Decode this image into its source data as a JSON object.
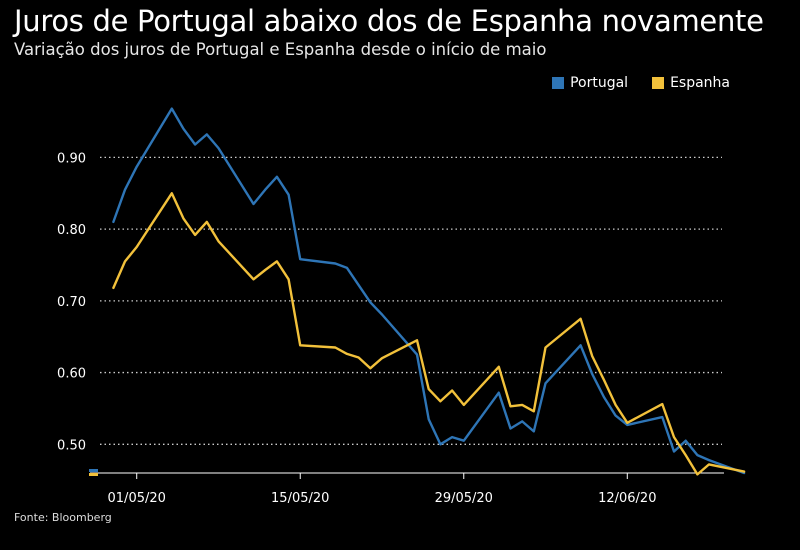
{
  "header": {
    "title": "Juros de Portugal abaixo dos de Espanha novamente",
    "subtitle": "Variação dos juros de Portugal e Espanha desde o início de maio"
  },
  "footer": {
    "source": "Fonte: Bloomberg"
  },
  "colors": {
    "portugal": "#2e75b6",
    "espanha": "#f2c13b",
    "grid": "#cccccc",
    "background": "#000000"
  },
  "chart_data": {
    "type": "line",
    "title": "Juros de Portugal abaixo dos de Espanha novamente",
    "subtitle": "Variação dos juros de Portugal e Espanha desde o início de maio",
    "xlabel": "",
    "ylabel": "",
    "ylim": [
      0.46,
      0.98
    ],
    "yticks": [
      0.5,
      0.6,
      0.7,
      0.8,
      0.9
    ],
    "ytick_labels": [
      "0.50",
      "0.60",
      "0.70",
      "0.80",
      "0.90"
    ],
    "xticks": [
      "01/05/20",
      "15/05/20",
      "29/05/20",
      "12/06/20"
    ],
    "grid": "horizontal-dotted",
    "legend_position": "top-right",
    "x": [
      "2020-04-29",
      "2020-04-30",
      "2020-05-01",
      "2020-05-04",
      "2020-05-05",
      "2020-05-06",
      "2020-05-07",
      "2020-05-08",
      "2020-05-11",
      "2020-05-12",
      "2020-05-13",
      "2020-05-14",
      "2020-05-15",
      "2020-05-18",
      "2020-05-19",
      "2020-05-20",
      "2020-05-21",
      "2020-05-22",
      "2020-05-25",
      "2020-05-26",
      "2020-05-27",
      "2020-05-28",
      "2020-05-29",
      "2020-06-01",
      "2020-06-02",
      "2020-06-03",
      "2020-06-04",
      "2020-06-05",
      "2020-06-08",
      "2020-06-09",
      "2020-06-10",
      "2020-06-11",
      "2020-06-12",
      "2020-06-15",
      "2020-06-16",
      "2020-06-17",
      "2020-06-18",
      "2020-06-19",
      "2020-06-22"
    ],
    "series": [
      {
        "name": "Portugal",
        "color": "#2e75b6",
        "values": [
          0.81,
          0.855,
          0.887,
          0.968,
          0.94,
          0.918,
          0.932,
          0.913,
          0.835,
          0.855,
          0.873,
          0.848,
          0.758,
          0.752,
          0.746,
          0.722,
          0.698,
          0.681,
          0.625,
          0.535,
          0.5,
          0.51,
          0.505,
          0.572,
          0.522,
          0.532,
          0.518,
          0.585,
          0.638,
          0.598,
          0.566,
          0.54,
          0.527,
          0.538,
          0.49,
          0.505,
          0.485,
          0.478,
          0.46
        ]
      },
      {
        "name": "Espanha",
        "color": "#f2c13b",
        "values": [
          0.718,
          0.755,
          0.775,
          0.85,
          0.815,
          0.792,
          0.81,
          0.783,
          0.73,
          0.743,
          0.755,
          0.73,
          0.638,
          0.635,
          0.626,
          0.621,
          0.606,
          0.62,
          0.645,
          0.577,
          0.56,
          0.575,
          0.555,
          0.608,
          0.553,
          0.555,
          0.546,
          0.635,
          0.675,
          0.623,
          0.59,
          0.555,
          0.53,
          0.556,
          0.51,
          0.485,
          0.458,
          0.472,
          0.462
        ]
      }
    ]
  }
}
